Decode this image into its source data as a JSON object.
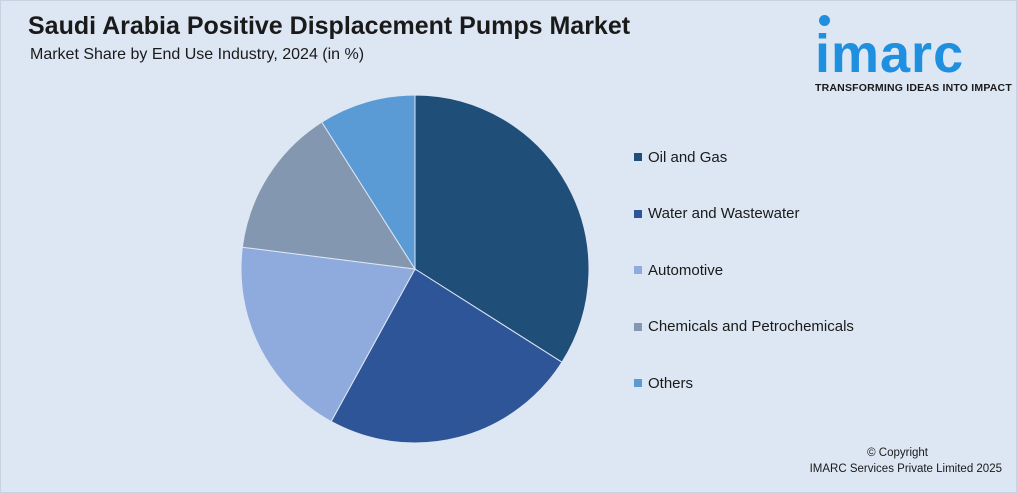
{
  "header": {
    "title": "Saudi Arabia Positive Displacement Pumps Market",
    "subtitle": "Market Share by End Use Industry, 2024 (in %)"
  },
  "logo": {
    "wordmark": "imarc",
    "tagline": "TRANSFORMING IDEAS INTO IMPACT",
    "color": "#1f8fe0"
  },
  "chart_data": {
    "type": "pie",
    "title": "Saudi Arabia Positive Displacement Pumps Market",
    "subtitle": "Market Share by End Use Industry, 2024 (in %)",
    "categories": [
      "Oil and Gas",
      "Water and Wastewater",
      "Automotive",
      "Chemicals and Petrochemicals",
      "Others"
    ],
    "values": [
      34,
      24,
      19,
      14,
      9
    ],
    "colors": [
      "#1f4e79",
      "#2e5597",
      "#8faadc",
      "#8497b0",
      "#5b9bd5"
    ],
    "legend_position": "right"
  },
  "footer": {
    "copyright": "© Copyright",
    "company": "IMARC Services Private Limited 2025"
  }
}
